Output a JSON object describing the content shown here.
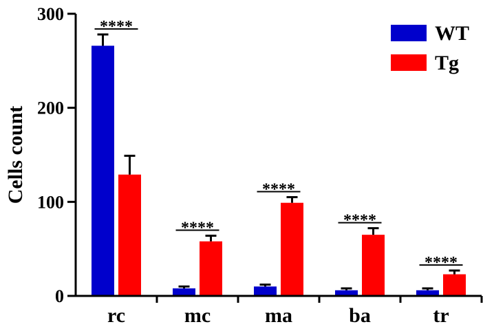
{
  "chart_data": {
    "type": "bar",
    "title": "",
    "xlabel": "",
    "ylabel": "Cells count",
    "ylim": [
      0,
      300
    ],
    "yticks": [
      0,
      100,
      200,
      300
    ],
    "categories": [
      "rc",
      "mc",
      "ma",
      "ba",
      "tr"
    ],
    "series": [
      {
        "name": "WT",
        "color": "#0000cc",
        "values": [
          266,
          8,
          10,
          6,
          6
        ],
        "errors": [
          12,
          2,
          2,
          2,
          2
        ]
      },
      {
        "name": "Tg",
        "color": "#ff0000",
        "values": [
          129,
          58,
          99,
          65,
          23
        ],
        "errors": [
          20,
          6,
          6,
          7,
          4
        ]
      }
    ],
    "legend_position": "top-right",
    "grid": false,
    "annotations": [
      {
        "category": "rc",
        "text": "****"
      },
      {
        "category": "mc",
        "text": "****"
      },
      {
        "category": "ma",
        "text": "****"
      },
      {
        "category": "ba",
        "text": "****"
      },
      {
        "category": "tr",
        "text": "****"
      }
    ]
  }
}
